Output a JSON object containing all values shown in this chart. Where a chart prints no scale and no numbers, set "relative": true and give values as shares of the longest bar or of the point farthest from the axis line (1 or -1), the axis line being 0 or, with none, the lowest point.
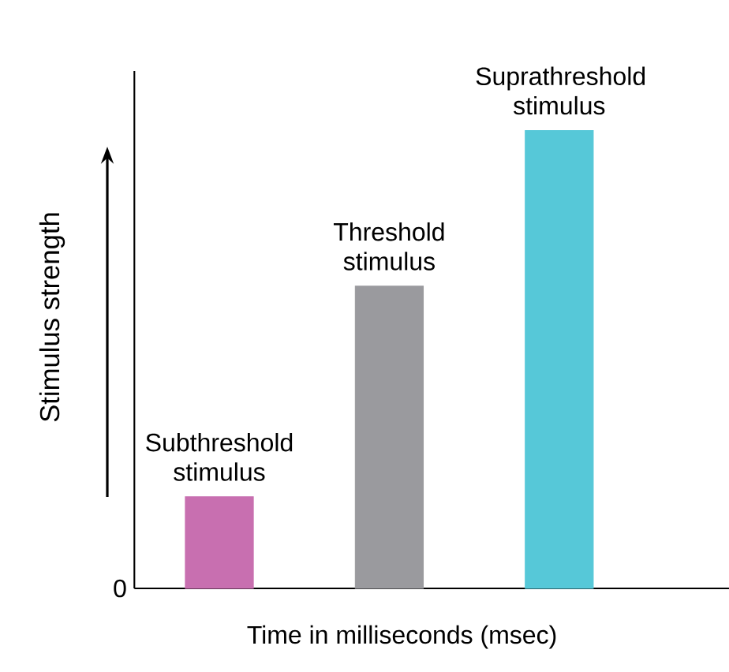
{
  "chart_data": {
    "type": "bar",
    "relative": true,
    "xlabel": "Time in milliseconds (msec)",
    "ylabel": "Stimulus strength",
    "categories": [
      null,
      null,
      null
    ],
    "values": [
      0.2,
      0.66,
      1
    ],
    "colors": [
      "#c86fb0",
      "#9a9a9e",
      "#56c8d8"
    ],
    "annotations": [
      "Subthreshold stimulus",
      "Threshold stimulus",
      "Suprathreshold stimulus",
      "0"
    ]
  }
}
